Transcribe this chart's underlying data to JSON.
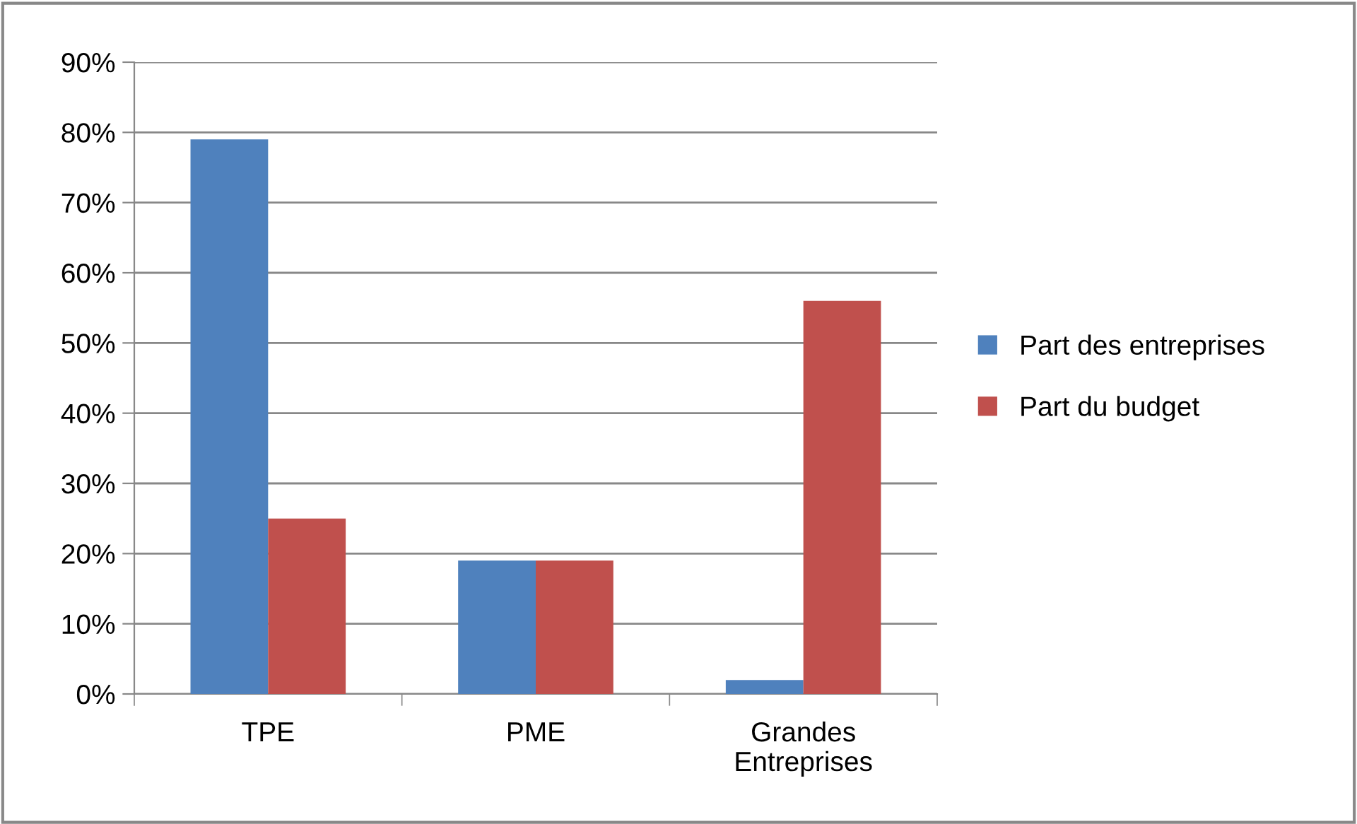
{
  "chart_data": {
    "type": "bar",
    "categories": [
      "TPE",
      "PME",
      "Grandes\nEntreprises"
    ],
    "series": [
      {
        "name": "Part des entreprises",
        "color": "#4f81bd",
        "values": [
          79,
          19,
          2
        ]
      },
      {
        "name": "Part du budget",
        "color": "#c0504d",
        "values": [
          25,
          19,
          56
        ]
      }
    ],
    "ylim": [
      0,
      90
    ],
    "yticks": [
      {
        "value": 0,
        "label": "0%"
      },
      {
        "value": 10,
        "label": "10%"
      },
      {
        "value": 20,
        "label": "20%"
      },
      {
        "value": 30,
        "label": "30%"
      },
      {
        "value": 40,
        "label": "40%"
      },
      {
        "value": 50,
        "label": "50%"
      },
      {
        "value": 60,
        "label": "60%"
      },
      {
        "value": 70,
        "label": "70%"
      },
      {
        "value": 80,
        "label": "80%"
      },
      {
        "value": 90,
        "label": "90%"
      }
    ],
    "grid": "y",
    "legend": "right"
  }
}
